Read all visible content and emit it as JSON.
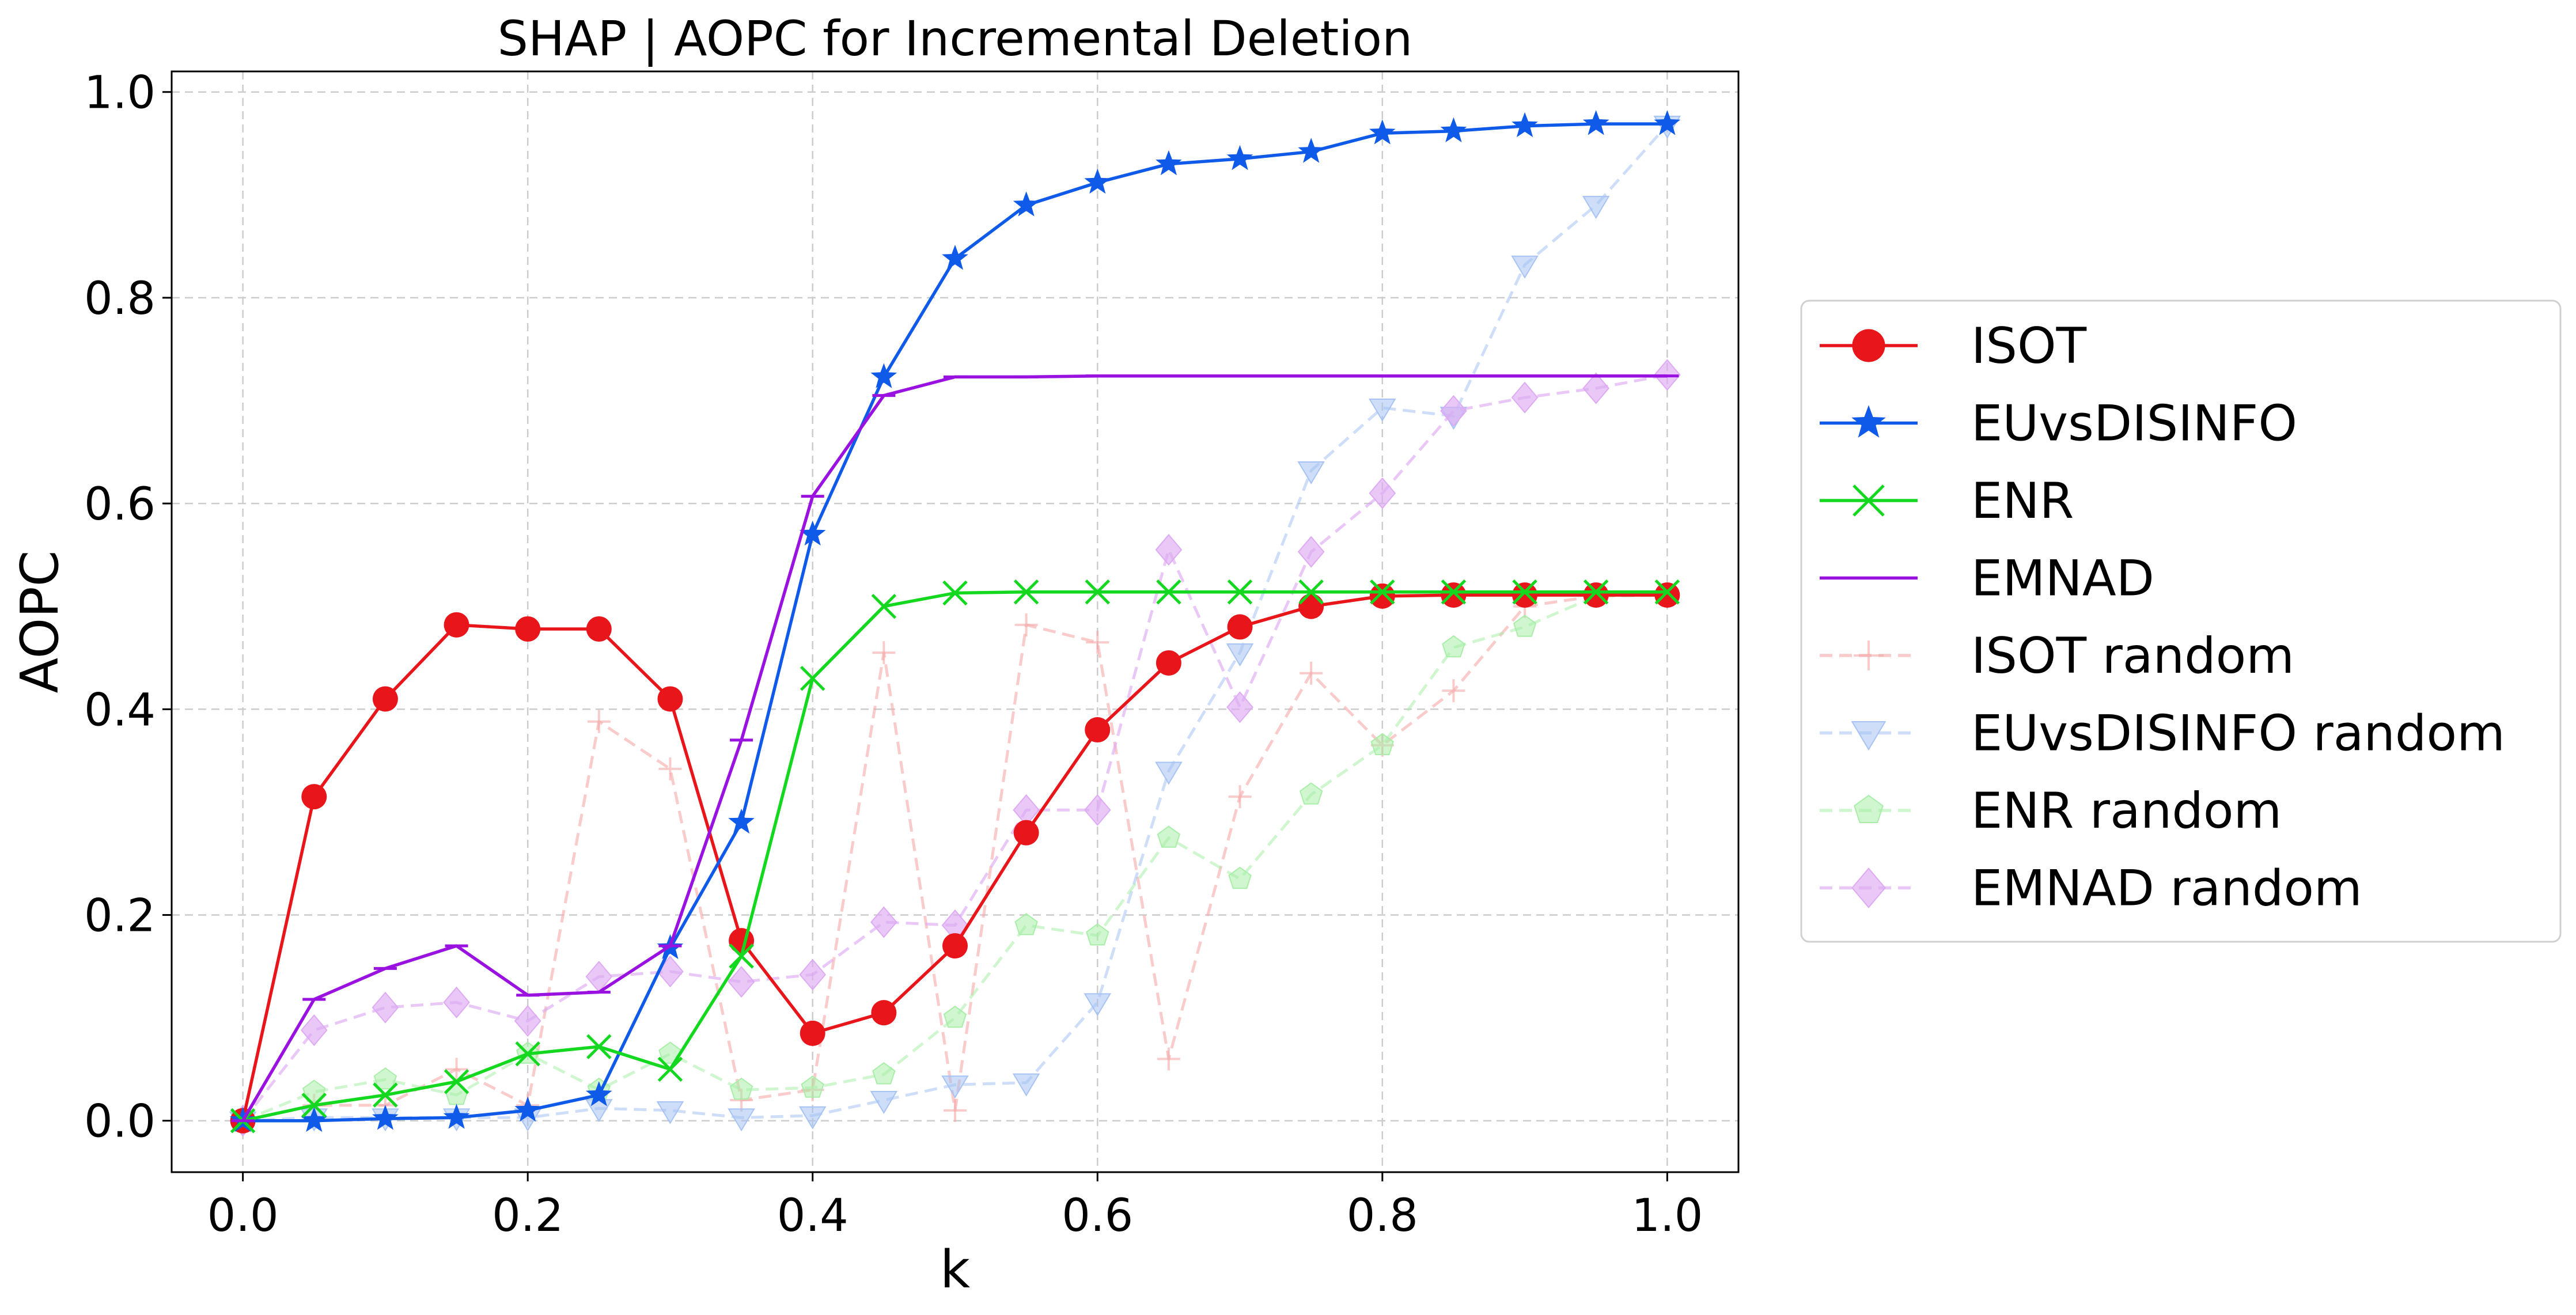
{
  "chart_data": {
    "type": "line",
    "title": "SHAP | AOPC for Incremental Deletion",
    "xlabel": "k",
    "ylabel": "AOPC",
    "xlim": [
      -0.05,
      1.05
    ],
    "ylim": [
      -0.05,
      1.02
    ],
    "xticks": [
      "0.0",
      "0.2",
      "0.4",
      "0.6",
      "0.8",
      "1.0"
    ],
    "yticks": [
      "0.0",
      "0.2",
      "0.4",
      "0.6",
      "0.8",
      "1.0"
    ],
    "grid": true,
    "legend_position": "right-outside",
    "x": [
      0.0,
      0.05,
      0.1,
      0.15,
      0.2,
      0.25,
      0.3,
      0.35,
      0.4,
      0.45,
      0.5,
      0.55,
      0.6,
      0.65,
      0.7,
      0.75,
      0.8,
      0.85,
      0.9,
      0.95,
      1.0
    ],
    "series": [
      {
        "name": "ISOT",
        "color": "#e8151b",
        "marker": "circle",
        "dashed": false,
        "alpha": 1.0,
        "values": [
          0.0,
          0.315,
          0.41,
          0.482,
          0.478,
          0.478,
          0.41,
          0.175,
          0.085,
          0.105,
          0.17,
          0.28,
          0.38,
          0.445,
          0.48,
          0.5,
          0.51,
          0.511,
          0.511,
          0.511,
          0.511
        ]
      },
      {
        "name": "EUvsDISINFO",
        "color": "#0f5ae8",
        "marker": "star",
        "dashed": false,
        "alpha": 1.0,
        "values": [
          0.0,
          0.0,
          0.002,
          0.003,
          0.01,
          0.025,
          0.168,
          0.29,
          0.57,
          0.723,
          0.838,
          0.89,
          0.912,
          0.93,
          0.935,
          0.942,
          0.96,
          0.962,
          0.967,
          0.969,
          0.969
        ]
      },
      {
        "name": "ENR",
        "color": "#14d81f",
        "marker": "x",
        "dashed": false,
        "alpha": 1.0,
        "values": [
          0.0,
          0.015,
          0.025,
          0.038,
          0.065,
          0.072,
          0.05,
          0.16,
          0.43,
          0.5,
          0.513,
          0.514,
          0.514,
          0.514,
          0.514,
          0.514,
          0.514,
          0.514,
          0.514,
          0.514,
          0.514
        ]
      },
      {
        "name": "EMNAD",
        "color": "#9a12e0",
        "marker": "hline",
        "dashed": false,
        "alpha": 1.0,
        "values": [
          0.0,
          0.118,
          0.148,
          0.17,
          0.122,
          0.125,
          0.17,
          0.37,
          0.607,
          0.705,
          0.723,
          0.723,
          0.724,
          0.724,
          0.724,
          0.724,
          0.724,
          0.724,
          0.724,
          0.724,
          0.724
        ]
      },
      {
        "name": "ISOT random",
        "color": "#f5a8a8",
        "marker": "plus",
        "dashed": true,
        "alpha": 0.6,
        "values": [
          0.0,
          0.015,
          0.015,
          0.05,
          0.015,
          0.388,
          0.342,
          0.02,
          0.03,
          0.455,
          0.01,
          0.482,
          0.465,
          0.06,
          0.315,
          0.435,
          0.365,
          0.418,
          0.5,
          0.51,
          0.511
        ]
      },
      {
        "name": "EUvsDISINFO random",
        "color": "#a6c3f3",
        "marker": "triangle-down",
        "dashed": true,
        "alpha": 0.55,
        "values": [
          0.0,
          0.003,
          0.003,
          0.003,
          0.003,
          0.012,
          0.01,
          0.003,
          0.005,
          0.02,
          0.035,
          0.037,
          0.115,
          0.34,
          0.455,
          0.632,
          0.693,
          0.685,
          0.832,
          0.89,
          0.968
        ]
      },
      {
        "name": "ENR random",
        "color": "#a8eea8",
        "marker": "pentagon",
        "dashed": true,
        "alpha": 0.55,
        "values": [
          0.0,
          0.028,
          0.04,
          0.025,
          0.065,
          0.03,
          0.065,
          0.03,
          0.032,
          0.045,
          0.1,
          0.19,
          0.18,
          0.275,
          0.235,
          0.317,
          0.365,
          0.46,
          0.48,
          0.51,
          0.511
        ]
      },
      {
        "name": "EMNAD random",
        "color": "#ddaaf3",
        "marker": "diamond",
        "dashed": true,
        "alpha": 0.65,
        "values": [
          0.0,
          0.088,
          0.11,
          0.115,
          0.097,
          0.14,
          0.145,
          0.135,
          0.142,
          0.193,
          0.19,
          0.302,
          0.302,
          0.555,
          0.402,
          0.553,
          0.61,
          0.69,
          0.703,
          0.712,
          0.725
        ]
      }
    ]
  }
}
